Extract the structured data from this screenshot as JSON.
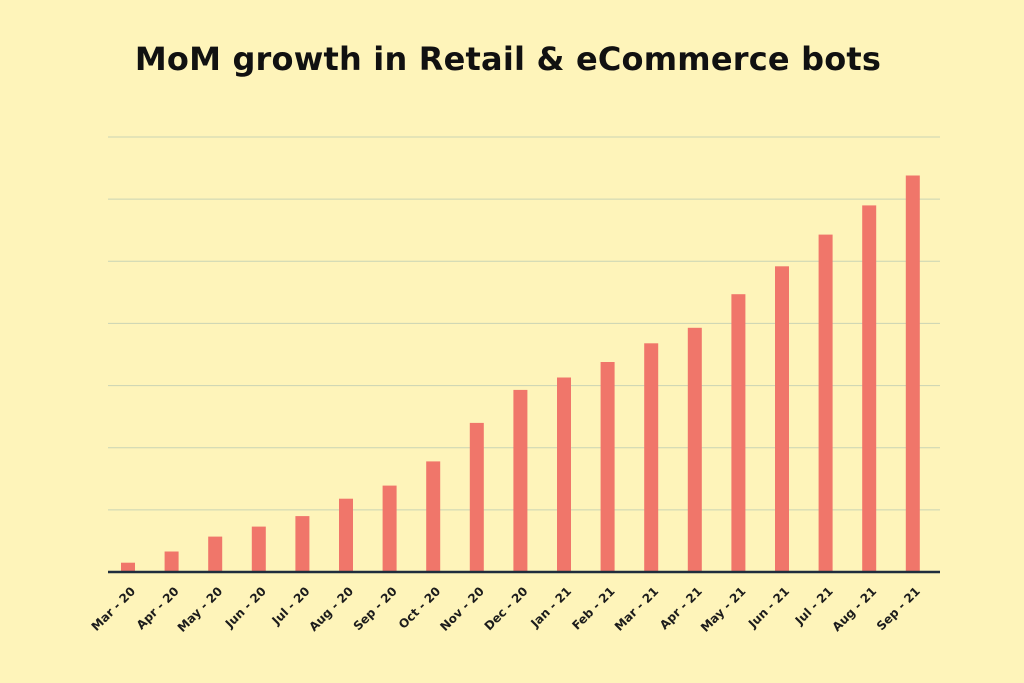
{
  "chart_data": {
    "type": "bar",
    "title": "MoM growth in Retail & eCommerce bots",
    "xlabel": "",
    "ylabel": "",
    "categories": [
      "Mar - 20",
      "Apr - 20",
      "May - 20",
      "Jun - 20",
      "Jul - 20",
      "Aug - 20",
      "Sep - 20",
      "Oct - 20",
      "Nov - 20",
      "Dec - 20",
      "Jan - 21",
      "Feb - 21",
      "Mar - 21",
      "Apr - 21",
      "May - 21",
      "Jun - 21",
      "Jul - 21",
      "Aug - 21",
      "Sep - 21"
    ],
    "values": [
      0.15,
      0.33,
      0.57,
      0.73,
      0.9,
      1.18,
      1.39,
      1.78,
      2.4,
      2.93,
      3.13,
      3.38,
      3.68,
      3.93,
      4.47,
      4.92,
      5.43,
      5.9,
      6.38
    ],
    "ylim": [
      0,
      7
    ],
    "yticks": [
      0,
      1,
      2,
      3,
      4,
      5,
      6,
      7
    ],
    "show_ytick_labels": false,
    "grid": true,
    "colors": {
      "background": "#FEF4BA",
      "bar": "#F0766A",
      "grid": "#C9D3B4",
      "axis": "#1F2D3D",
      "text": "#111111"
    }
  }
}
